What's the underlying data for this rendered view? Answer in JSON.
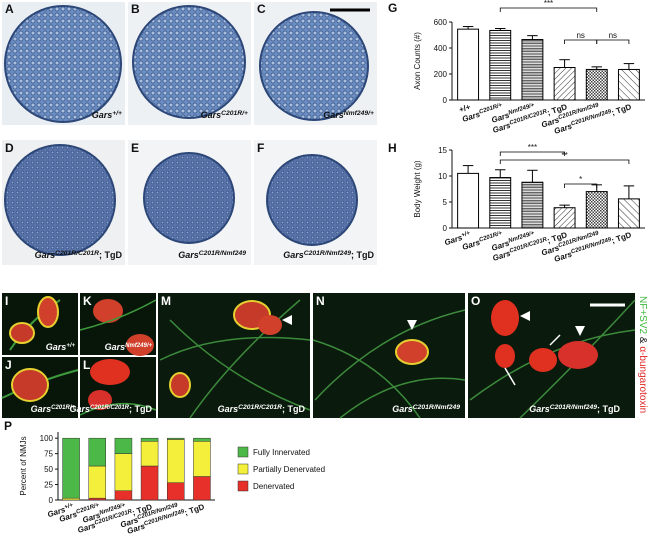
{
  "images": [
    {
      "label": "A",
      "caption": "Gars+/+"
    },
    {
      "label": "B",
      "caption": "GarsC201R/+"
    },
    {
      "label": "C",
      "caption": "GarsNmf249/+"
    },
    {
      "label": "D",
      "caption": "GarsC201R/C201R; TgD"
    },
    {
      "label": "E",
      "caption": "GarsC201R/Nmf249"
    },
    {
      "label": "F",
      "caption": "GarsC201R/Nmf249; TgD"
    },
    {
      "label": "I",
      "caption": "Gars+/+"
    },
    {
      "label": "J",
      "caption": "GarsC201R/+"
    },
    {
      "label": "K",
      "caption": "GarsNmf249/+"
    },
    {
      "label": "L",
      "caption": "GarsC201R/C201R; TgD"
    },
    {
      "label": "M",
      "caption": "GarsC201R/C201R; TgD"
    },
    {
      "label": "N",
      "caption": "GarsC201R/Nmf249"
    },
    {
      "label": "O",
      "caption": "GarsC201R/Nmf249; TgD"
    }
  ],
  "stain_legend": [
    "NF+SV2",
    " & ",
    "α-bungarotoxin"
  ],
  "chart_data": [
    {
      "type": "bar",
      "panel": "G",
      "y_label": "Axon Counts (#)",
      "categories": [
        "+/+",
        "GarsC201R/+",
        "GarsNmf249/+",
        "GarsC201R/C201R; TgD",
        "GarsC201R/Nmf249",
        "GarsC201R/Nmf249; TgD"
      ],
      "values": [
        545,
        535,
        465,
        250,
        235,
        235
      ],
      "errors": [
        20,
        15,
        30,
        60,
        20,
        45
      ],
      "ylim": [
        0,
        600
      ],
      "yticks": [
        0,
        200,
        400,
        600
      ],
      "annotations": [
        "***",
        "ns",
        "ns"
      ]
    },
    {
      "type": "bar",
      "panel": "H",
      "y_label": "Body Weight (g)",
      "categories": [
        "Gars+/+",
        "GarsC201R/+",
        "GarsNmf249/+",
        "GarsC201R/C201R; TgD",
        "GarsC201R/Nmf249",
        "GarsC201R/Nmf249; TgD"
      ],
      "values": [
        10.5,
        9.7,
        8.8,
        3.9,
        7.0,
        5.6
      ],
      "errors": [
        1.5,
        1.5,
        2.3,
        0.5,
        1.3,
        2.5
      ],
      "ylim": [
        0,
        15
      ],
      "yticks": [
        0,
        5,
        10,
        15
      ],
      "annotations": [
        "***",
        "**",
        "*"
      ]
    },
    {
      "type": "stacked_bar",
      "panel": "P",
      "y_label": "Percent of NMJs",
      "categories": [
        "Gars+/+",
        "GarsC201R/+",
        "GarsNmf249/+",
        "GarsC201R/C201R; TgD",
        "GarsC201R/Nmf249",
        "GarsC201R/Nmf249; TgD"
      ],
      "series": [
        {
          "name": "Denervated",
          "color": "#e8302a",
          "values": [
            0,
            3,
            15,
            55,
            28,
            38
          ]
        },
        {
          "name": "Partially Denervated",
          "color": "#f4ef3a",
          "values": [
            3,
            52,
            60,
            40,
            70,
            57
          ]
        },
        {
          "name": "Fully Innervated",
          "color": "#4cb848",
          "values": [
            97,
            45,
            25,
            5,
            2,
            5
          ]
        }
      ],
      "ylim": [
        0,
        110
      ],
      "yticks": [
        0,
        25,
        50,
        75,
        100
      ]
    }
  ]
}
